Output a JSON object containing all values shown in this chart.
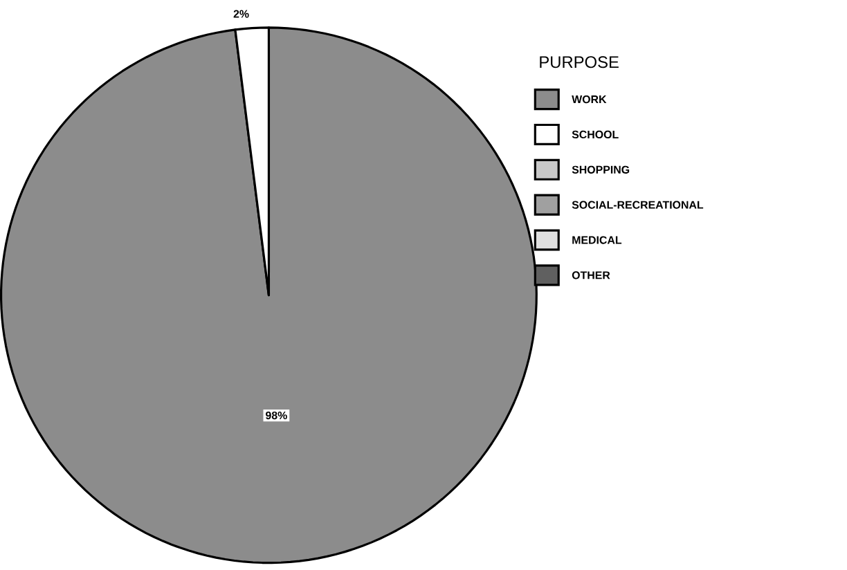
{
  "chart_data": {
    "type": "pie",
    "legend_title": "PURPOSE",
    "legend": "right",
    "categories": [
      "WORK",
      "SCHOOL",
      "SHOPPING",
      "SOCIAL-RECREATIONAL",
      "MEDICAL",
      "OTHER"
    ],
    "values": [
      98,
      2,
      0,
      0,
      0,
      0
    ],
    "colors": [
      "#8c8c8c",
      "#ffffff",
      "#c8c8c8",
      "#a0a0a0",
      "#e0e0e0",
      "#606060"
    ],
    "value_labels": [
      "98%",
      "2%",
      null,
      null,
      null,
      null
    ]
  }
}
